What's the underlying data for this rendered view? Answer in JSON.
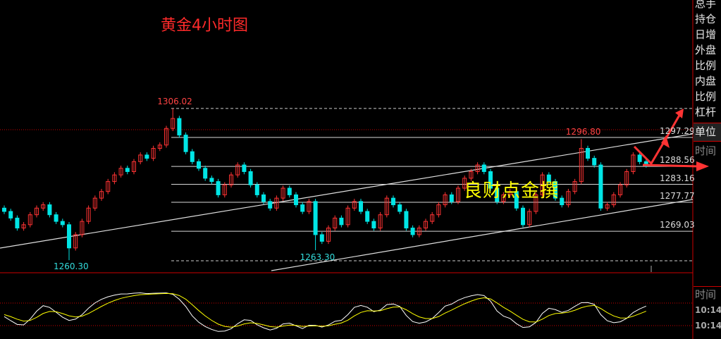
{
  "title": "黄金4小时图",
  "watermark": "良财点金撰",
  "side_panel": {
    "items": [
      "总手",
      "持仓",
      "日增",
      "外盘",
      "比例",
      "内盘",
      "比例",
      "杠杆"
    ],
    "unit": "单位",
    "time_label": "时间",
    "time_label_2": "时间",
    "clock_1": "10:14",
    "clock_2": "10:14"
  },
  "colors": {
    "up": "#ff3333",
    "down": "#00e5e5",
    "level_line": "#d8d8d8",
    "arrow": "#ff3333",
    "title": "#ff2a2a",
    "watermark": "#ffff00"
  },
  "chart_data": {
    "type": "candlestick",
    "levels": [
      {
        "label": "1297.29",
        "value": 1297.29
      },
      {
        "label": "1288.56",
        "value": 1288.56
      },
      {
        "label": "1283.16",
        "value": 1283.16
      },
      {
        "label": "1277.77",
        "value": 1277.77
      },
      {
        "label": "1269.03",
        "value": 1269.03
      }
    ],
    "annotations": [
      {
        "label": "1306.02",
        "value": 1306.02,
        "index": 26,
        "kind": "high"
      },
      {
        "label": "1296.80",
        "value": 1296.8,
        "index": 89,
        "kind": "high"
      },
      {
        "label": "1260.30",
        "value": 1260.3,
        "index": 10,
        "kind": "low"
      },
      {
        "label": "1263.30",
        "value": 1263.3,
        "index": 48,
        "kind": "low"
      }
    ],
    "first_open": 1276,
    "close": [
      1275,
      1273,
      1270,
      1271,
      1274,
      1276,
      1277,
      1274,
      1272,
      1271,
      1264,
      1268,
      1272,
      1276,
      1279,
      1281,
      1284,
      1286,
      1288,
      1287,
      1290,
      1292,
      1291,
      1294,
      1295,
      1300,
      1303,
      1298,
      1293,
      1290,
      1288,
      1285,
      1284,
      1280,
      1283,
      1286,
      1289,
      1287,
      1283,
      1280,
      1278,
      1276,
      1279,
      1282,
      1280,
      1277,
      1275,
      1278,
      1268,
      1266,
      1270,
      1273,
      1271,
      1276,
      1278,
      1275,
      1272,
      1270,
      1274,
      1279,
      1277,
      1275,
      1270,
      1268,
      1270,
      1272,
      1274,
      1277,
      1280,
      1278,
      1282,
      1285,
      1287,
      1289,
      1287,
      1282,
      1278,
      1280,
      1281,
      1276,
      1271,
      1275,
      1280,
      1286,
      1284,
      1279,
      1277,
      1281,
      1284,
      1294,
      1291,
      1289,
      1276,
      1277,
      1280,
      1283,
      1287,
      1292,
      1290,
      1289
    ],
    "oscillator": {
      "type": "stochastic",
      "upper": 80,
      "lower": 20
    }
  }
}
